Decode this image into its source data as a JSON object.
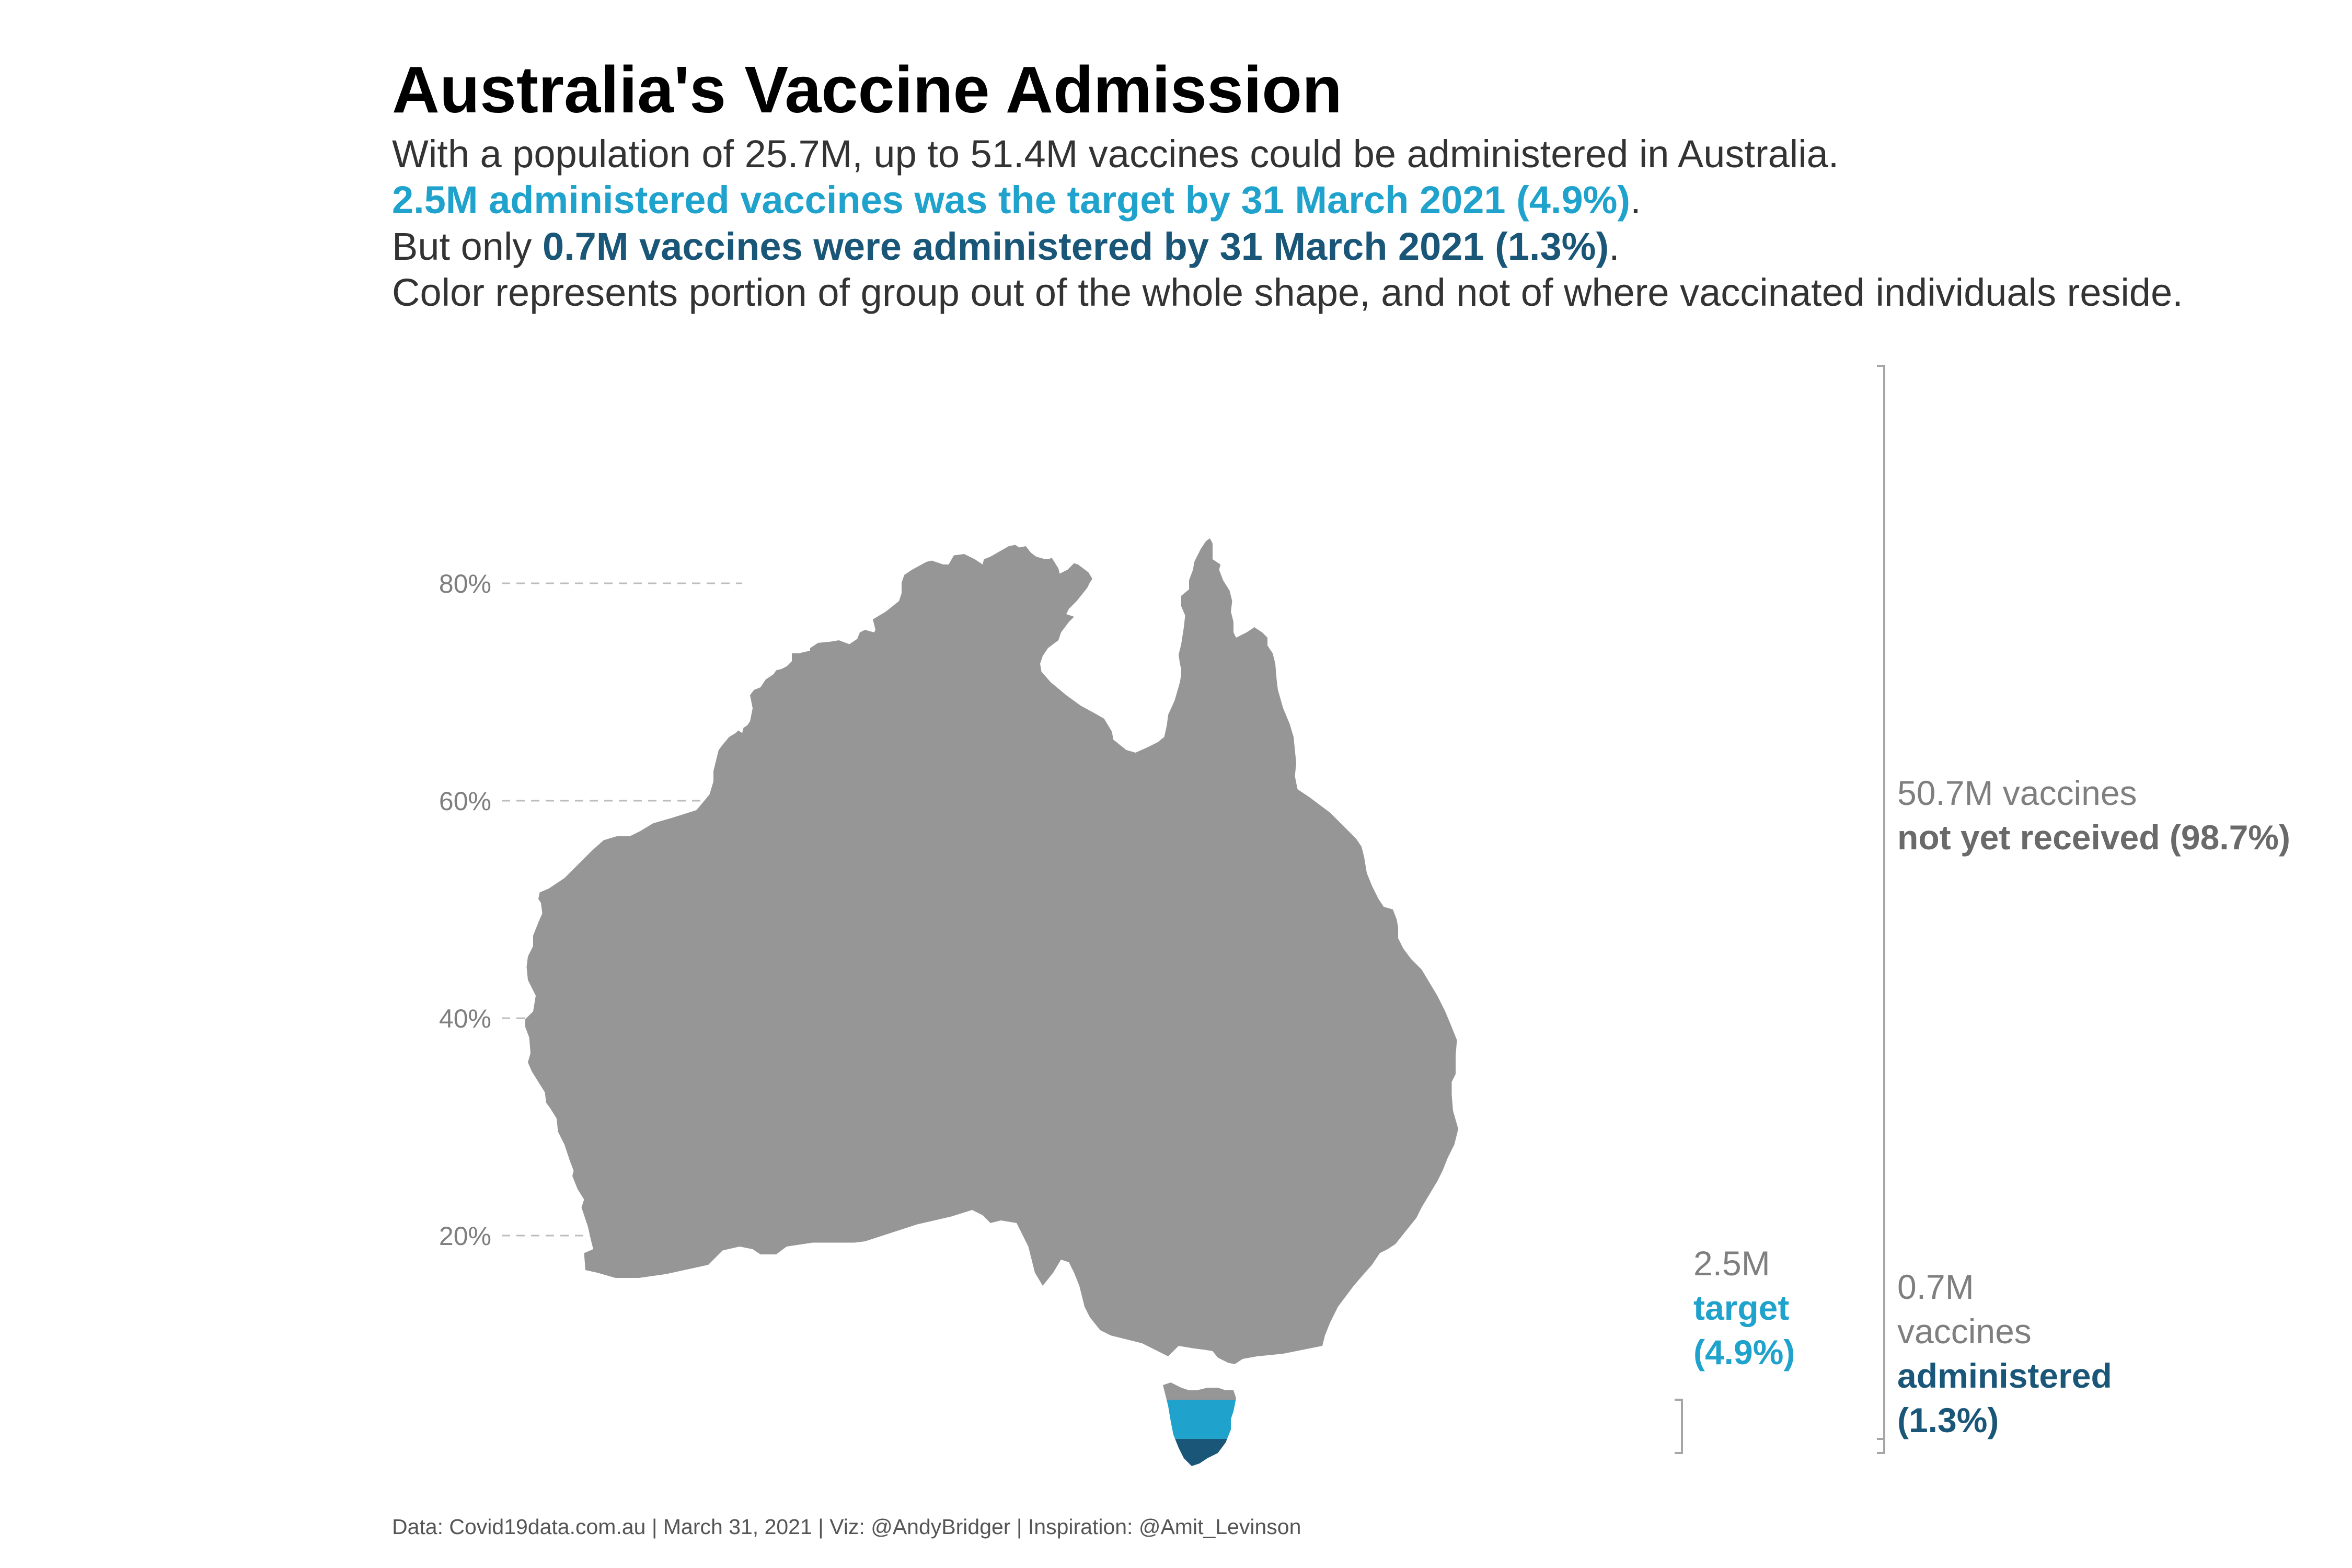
{
  "chart_data": {
    "type": "area",
    "title": "Australia's Vaccine Admission",
    "subtitle": {
      "line1": "With a population of 25.7M, up to 51.4M vaccines could be administered in Australia.",
      "line2_bold": "2.5M administered vaccines was the target by 31 March 2021 (4.9%)",
      "line2_end": ".",
      "line3_start": "But only ",
      "line3_bold": "0.7M vaccines were administered by 31 March 2021 (1.3%)",
      "line3_end": ".",
      "line4": "Color represents portion of group out of the whole shape, and not of where vaccinated individuals reside."
    },
    "y_ticks": [
      {
        "value": 80,
        "label": "80%"
      },
      {
        "value": 60,
        "label": "60%"
      },
      {
        "value": 40,
        "label": "40%"
      },
      {
        "value": 20,
        "label": "20%"
      }
    ],
    "groups": [
      {
        "key": "not_received",
        "value_m": 50.7,
        "percent": 98.7,
        "color": "#969696",
        "label_top": "50.7M vaccines",
        "label_bold": "not yet received (98.7%)"
      },
      {
        "key": "target",
        "value_m": 2.5,
        "percent": 4.9,
        "color": "#1fa2cb",
        "label_top": "2.5M",
        "label_bold1": "target",
        "label_bold2": "(4.9%)"
      },
      {
        "key": "administered",
        "value_m": 0.7,
        "percent": 1.3,
        "color": "#1a5677",
        "label_top1": "0.7M",
        "label_top2": "vaccines",
        "label_bold1": "administered",
        "label_bold2": "(1.3%)"
      }
    ],
    "total_m": 51.4,
    "population_m": 25.7,
    "caption": "Data: Covid19data.com.au | March 31, 2021 | Viz: @AndyBridger | Inspiration: @Amit_Levinson"
  }
}
